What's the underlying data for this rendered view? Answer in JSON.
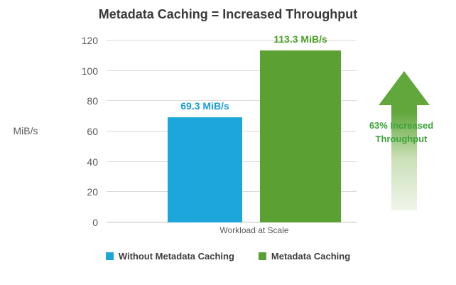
{
  "title": "Metadata Caching = Increased Throughput",
  "chart_data": {
    "type": "bar",
    "title": "Metadata Caching = Increased Throughput",
    "categories": [
      "Workload at Scale"
    ],
    "series": [
      {
        "name": "Without Metadata Caching",
        "values": [
          69.3
        ],
        "data_label": "69.3 MiB/s",
        "color": "#1ca6d9",
        "label_color": "#1b9cd8"
      },
      {
        "name": "Metadata Caching",
        "values": [
          113.3
        ],
        "data_label": "113.3 MiB/s",
        "color": "#5ba033",
        "label_color": "#4f9e2b"
      }
    ],
    "xlabel": "",
    "ylabel": "MiB/s",
    "ylim": [
      0,
      120
    ],
    "yticks": [
      0,
      20,
      40,
      60,
      80,
      100,
      120
    ],
    "grid": true,
    "legend_position": "bottom"
  },
  "annotation": {
    "bold_text": "63%",
    "line1_rest": " Increased",
    "line2": "Throughput",
    "color": "#3ca338",
    "arrow_top_color": "#61a73c",
    "arrow_mid_color": "#c9dfb6",
    "arrow_bottom_color": "#f0f6eb"
  },
  "colors": {
    "title": "#3b3838",
    "axis_text": "#595959",
    "gridline": "#d9d9d9",
    "background": "#ffffff"
  }
}
